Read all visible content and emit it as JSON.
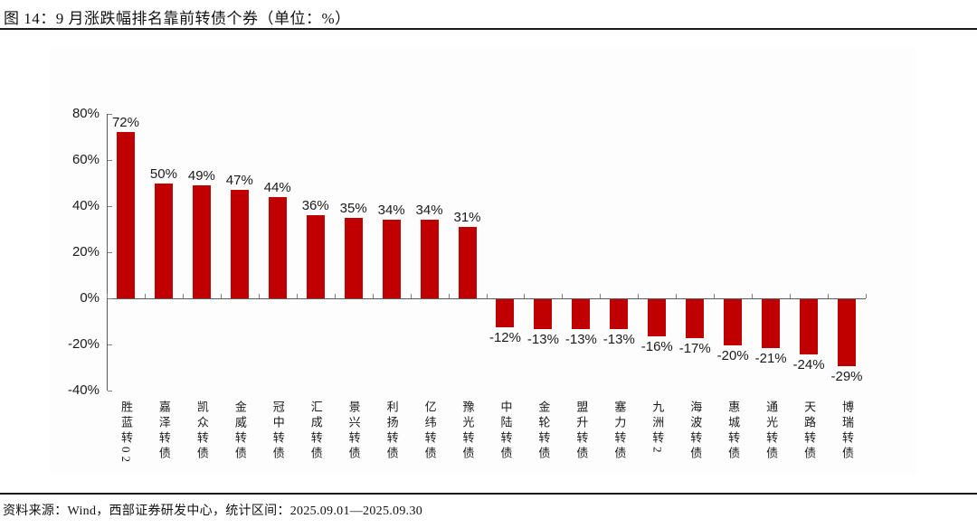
{
  "title": "图 14：9 月涨跌幅排名靠前转债个券（单位：%）",
  "footer": {
    "source": "资料来源：Wind，西部证券研发中心，统计区间：2025.09.01—2025.09.30"
  },
  "colors": {
    "bar": "#c00000",
    "axis": "#595959",
    "tick": "#7f7f7f",
    "text": "#1a1a1a"
  },
  "chart_data": {
    "type": "bar",
    "title": "9 月涨跌幅排名靠前转债个券",
    "unit": "%",
    "categories": [
      "胜蓝转02",
      "嘉泽转债",
      "凯众转债",
      "金威转债",
      "冠中转债",
      "汇成转债",
      "景兴转债",
      "利扬转债",
      "亿纬转债",
      "豫光转债",
      "中陆转债",
      "金轮转债",
      "盟升转债",
      "塞力转债",
      "九洲转2",
      "海波转债",
      "惠城转债",
      "通光转债",
      "天路转债",
      "博瑞转债"
    ],
    "values": [
      72,
      50,
      49,
      47,
      44,
      36,
      35,
      34,
      34,
      31,
      -12,
      -13,
      -13,
      -13,
      -16,
      -17,
      -20,
      -21,
      -24,
      -29
    ],
    "value_labels": [
      "72%",
      "50%",
      "49%",
      "47%",
      "44%",
      "36%",
      "35%",
      "34%",
      "34%",
      "31%",
      "-12%",
      "-13%",
      "-13%",
      "-13%",
      "-16%",
      "-17%",
      "-20%",
      "-21%",
      "-24%",
      "-29%"
    ],
    "ylim": [
      -40,
      80
    ],
    "yticks": [
      80,
      60,
      40,
      20,
      0,
      -20,
      -40
    ],
    "ytick_labels": [
      "80%",
      "60%",
      "40%",
      "20%",
      "0%",
      "-20%",
      "-40%"
    ],
    "grid": false,
    "legend": "none",
    "bar_color": "#c00000"
  }
}
